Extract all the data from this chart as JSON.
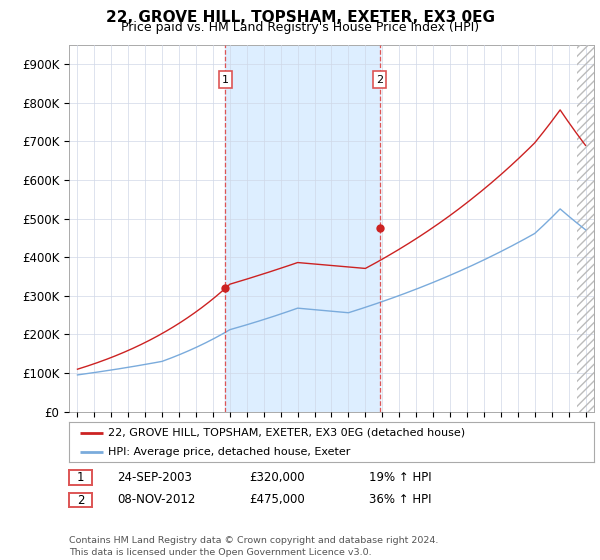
{
  "title": "22, GROVE HILL, TOPSHAM, EXETER, EX3 0EG",
  "subtitle": "Price paid vs. HM Land Registry's House Price Index (HPI)",
  "footnote": "Contains HM Land Registry data © Crown copyright and database right 2024.\nThis data is licensed under the Open Government Licence v3.0.",
  "legend_line1": "22, GROVE HILL, TOPSHAM, EXETER, EX3 0EG (detached house)",
  "legend_line2": "HPI: Average price, detached house, Exeter",
  "sale1_date_str": "24-SEP-2003",
  "sale1_price_str": "£320,000",
  "sale1_hpi_str": "19% ↑ HPI",
  "sale2_date_str": "08-NOV-2012",
  "sale2_price_str": "£475,000",
  "sale2_hpi_str": "36% ↑ HPI",
  "sale1_year": 2003.73,
  "sale1_value": 320000,
  "sale2_year": 2012.85,
  "sale2_value": 475000,
  "red_color": "#cc2222",
  "blue_color": "#7aabdc",
  "vline_color": "#dd5555",
  "shade_color": "#ddeeff",
  "ylim_min": 0,
  "ylim_max": 950000,
  "xlim_min": 1994.5,
  "xlim_max": 2025.5,
  "fig_width": 6.0,
  "fig_height": 5.6,
  "dpi": 100
}
